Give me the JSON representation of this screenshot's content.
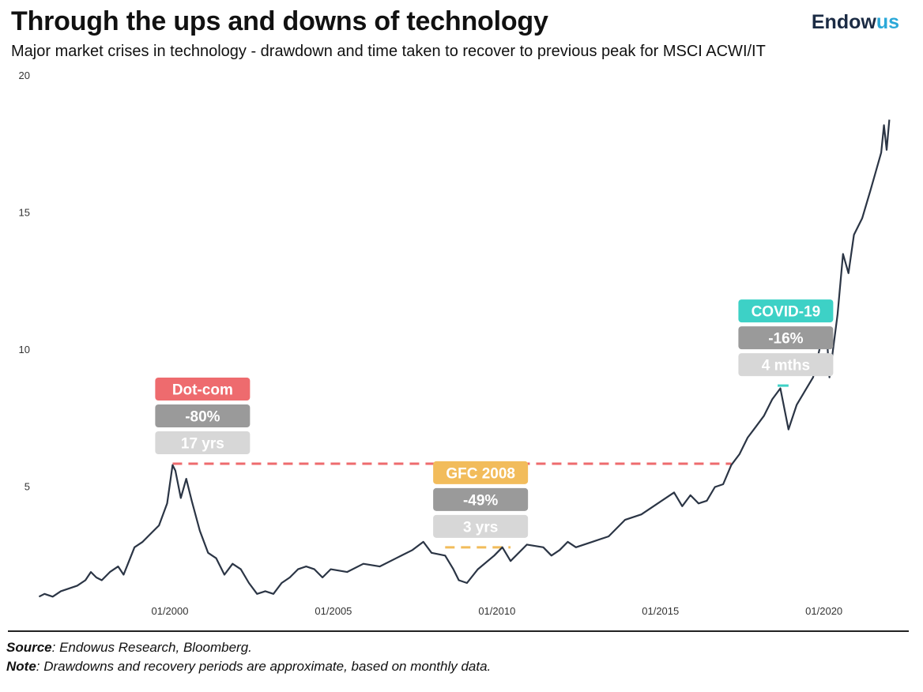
{
  "header": {
    "title": "Through the ups and downs of technology",
    "subtitle": "Major market crises in technology - drawdown and time taken to recover to previous peak for MSCI ACWI/IT",
    "brand_main": "Endow",
    "brand_accent": "us",
    "brand_color": "#1b2b44",
    "brand_accent_color": "#2aa8d8"
  },
  "footer": {
    "source_label": "Source",
    "source_text": ": Endowus Research, Bloomberg.",
    "note_label": "Note",
    "note_text": ": Drawdowns and recovery periods are approximate, based on monthly data."
  },
  "chart_data": {
    "type": "line",
    "title": "Through the ups and downs of technology",
    "subtitle": "Major market crises in technology - drawdown and time taken to recover to previous peak for MSCI ACWI/IT",
    "xlabel": "",
    "ylabel": "",
    "ylim": [
      0,
      20
    ],
    "xlim": [
      "1995-12",
      "2021-12"
    ],
    "y_ticks": [
      5,
      10,
      15,
      20
    ],
    "x_ticks": [
      {
        "date": "2000-01",
        "label": "01/2000"
      },
      {
        "date": "2005-01",
        "label": "01/2005"
      },
      {
        "date": "2010-01",
        "label": "01/2010"
      },
      {
        "date": "2015-01",
        "label": "01/2015"
      },
      {
        "date": "2020-01",
        "label": "01/2020"
      }
    ],
    "grid": false,
    "line_color": "#2b3545",
    "series": [
      {
        "values": [
          [
            "1996-01",
            1.0
          ],
          [
            "1996-03",
            1.1
          ],
          [
            "1996-06",
            1.0
          ],
          [
            "1996-09",
            1.2
          ],
          [
            "1996-12",
            1.3
          ],
          [
            "1997-03",
            1.4
          ],
          [
            "1997-06",
            1.6
          ],
          [
            "1997-08",
            1.9
          ],
          [
            "1997-10",
            1.7
          ],
          [
            "1997-12",
            1.6
          ],
          [
            "1998-03",
            1.9
          ],
          [
            "1998-06",
            2.1
          ],
          [
            "1998-08",
            1.8
          ],
          [
            "1998-10",
            2.3
          ],
          [
            "1998-12",
            2.8
          ],
          [
            "1999-03",
            3.0
          ],
          [
            "1999-06",
            3.3
          ],
          [
            "1999-09",
            3.6
          ],
          [
            "1999-12",
            4.4
          ],
          [
            "2000-02",
            5.8
          ],
          [
            "2000-03",
            5.6
          ],
          [
            "2000-05",
            4.6
          ],
          [
            "2000-07",
            5.3
          ],
          [
            "2000-09",
            4.5
          ],
          [
            "2000-12",
            3.4
          ],
          [
            "2001-03",
            2.6
          ],
          [
            "2001-06",
            2.4
          ],
          [
            "2001-09",
            1.8
          ],
          [
            "2001-12",
            2.2
          ],
          [
            "2002-03",
            2.0
          ],
          [
            "2002-06",
            1.5
          ],
          [
            "2002-09",
            1.1
          ],
          [
            "2002-12",
            1.2
          ],
          [
            "2003-03",
            1.1
          ],
          [
            "2003-06",
            1.5
          ],
          [
            "2003-09",
            1.7
          ],
          [
            "2003-12",
            2.0
          ],
          [
            "2004-03",
            2.1
          ],
          [
            "2004-06",
            2.0
          ],
          [
            "2004-09",
            1.7
          ],
          [
            "2004-12",
            2.0
          ],
          [
            "2005-06",
            1.9
          ],
          [
            "2005-12",
            2.2
          ],
          [
            "2006-06",
            2.1
          ],
          [
            "2006-12",
            2.4
          ],
          [
            "2007-06",
            2.7
          ],
          [
            "2007-10",
            3.0
          ],
          [
            "2008-01",
            2.6
          ],
          [
            "2008-06",
            2.5
          ],
          [
            "2008-09",
            2.0
          ],
          [
            "2008-11",
            1.6
          ],
          [
            "2009-02",
            1.5
          ],
          [
            "2009-06",
            2.0
          ],
          [
            "2009-12",
            2.5
          ],
          [
            "2010-03",
            2.8
          ],
          [
            "2010-06",
            2.3
          ],
          [
            "2010-12",
            2.9
          ],
          [
            "2011-06",
            2.8
          ],
          [
            "2011-09",
            2.5
          ],
          [
            "2011-12",
            2.7
          ],
          [
            "2012-03",
            3.0
          ],
          [
            "2012-06",
            2.8
          ],
          [
            "2012-12",
            3.0
          ],
          [
            "2013-06",
            3.2
          ],
          [
            "2013-12",
            3.8
          ],
          [
            "2014-06",
            4.0
          ],
          [
            "2014-12",
            4.4
          ],
          [
            "2015-06",
            4.8
          ],
          [
            "2015-09",
            4.3
          ],
          [
            "2015-12",
            4.7
          ],
          [
            "2016-03",
            4.4
          ],
          [
            "2016-06",
            4.5
          ],
          [
            "2016-09",
            5.0
          ],
          [
            "2016-12",
            5.1
          ],
          [
            "2017-03",
            5.8
          ],
          [
            "2017-06",
            6.2
          ],
          [
            "2017-09",
            6.8
          ],
          [
            "2017-12",
            7.2
          ],
          [
            "2018-03",
            7.6
          ],
          [
            "2018-06",
            8.2
          ],
          [
            "2018-09",
            8.6
          ],
          [
            "2018-12",
            7.1
          ],
          [
            "2019-03",
            8.0
          ],
          [
            "2019-06",
            8.5
          ],
          [
            "2019-09",
            9.0
          ],
          [
            "2019-12",
            10.3
          ],
          [
            "2020-02",
            10.6
          ],
          [
            "2020-03",
            9.0
          ],
          [
            "2020-06",
            11.3
          ],
          [
            "2020-08",
            13.5
          ],
          [
            "2020-10",
            12.8
          ],
          [
            "2020-12",
            14.2
          ],
          [
            "2021-03",
            14.8
          ],
          [
            "2021-06",
            15.8
          ],
          [
            "2021-08",
            16.5
          ],
          [
            "2021-10",
            17.2
          ],
          [
            "2021-11",
            18.2
          ],
          [
            "2021-12",
            17.3
          ],
          [
            "2022-01",
            18.4
          ]
        ]
      }
    ],
    "crises": [
      {
        "name": "Dot-com",
        "drawdown": "-80%",
        "recovery": "17 yrs",
        "color": "#ee6b6e",
        "line_start": "2000-02",
        "line_end": "2017-03",
        "level": 5.85,
        "label_anchor": "2001-01"
      },
      {
        "name": "GFC 2008",
        "drawdown": "-49%",
        "recovery": "3 yrs",
        "color": "#f2bc5b",
        "line_start": "2008-06",
        "line_end": "2010-06",
        "level": 2.8,
        "label_anchor": "2009-07"
      },
      {
        "name": "COVID-19",
        "drawdown": "-16%",
        "recovery": "4 mths",
        "color": "#3dd1c6",
        "line_start": "2018-08",
        "line_end": "2018-12",
        "level": 8.7,
        "label_anchor": "2018-11"
      }
    ],
    "drawdown_box_color": "#9a9a9a",
    "recovery_box_color": "#d7d7d7"
  }
}
